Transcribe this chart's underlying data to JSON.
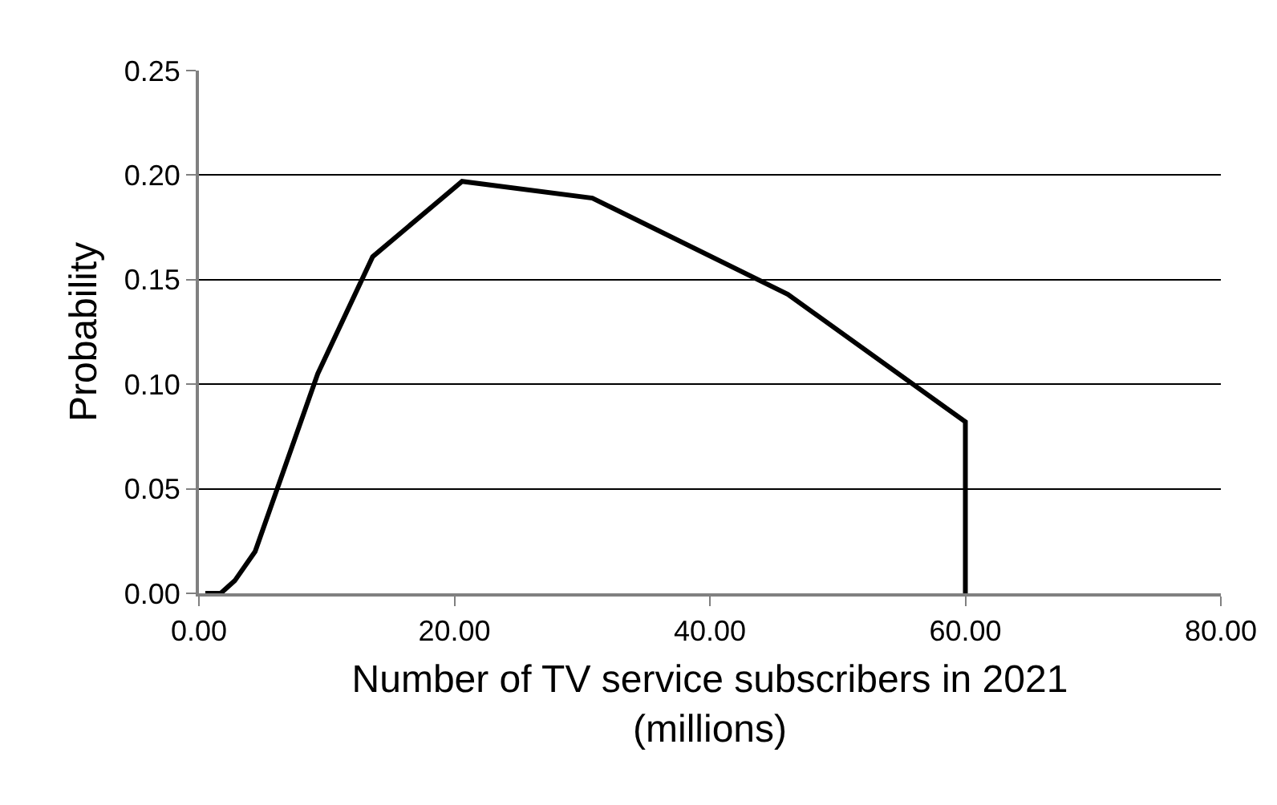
{
  "chart_data": {
    "type": "line",
    "xlabel": "Number of TV service subscribers in 2021\n(millions)",
    "ylabel": "Probability",
    "x": [
      0.5,
      1.7,
      2.8,
      4.4,
      9.3,
      13.6,
      20.6,
      30.8,
      46.1,
      60.0,
      60.0
    ],
    "series": [
      {
        "color": "#000000",
        "values": [
          0,
          0,
          0.006,
          0.02,
          0.105,
          0.161,
          0.197,
          0.189,
          0.143,
          0.082,
          0
        ]
      }
    ],
    "xlim": [
      0,
      80
    ],
    "xticks": [
      {
        "value": 0,
        "label": "0.00"
      },
      {
        "value": 20,
        "label": "20.00"
      },
      {
        "value": 40,
        "label": "40.00"
      },
      {
        "value": 60,
        "label": "60.00"
      },
      {
        "value": 80,
        "label": "80.00"
      }
    ],
    "ylim": [
      0,
      0.25
    ],
    "yticks": [
      {
        "value": 0,
        "label": "0.00"
      },
      {
        "value": 0.05,
        "label": "0.05"
      },
      {
        "value": 0.1,
        "label": "0.10"
      },
      {
        "value": 0.15,
        "label": "0.15"
      },
      {
        "value": 0.2,
        "label": "0.20"
      },
      {
        "value": 0.25,
        "label": "0.25"
      }
    ],
    "grid": "y",
    "marker": "none",
    "line_style": "solid"
  }
}
